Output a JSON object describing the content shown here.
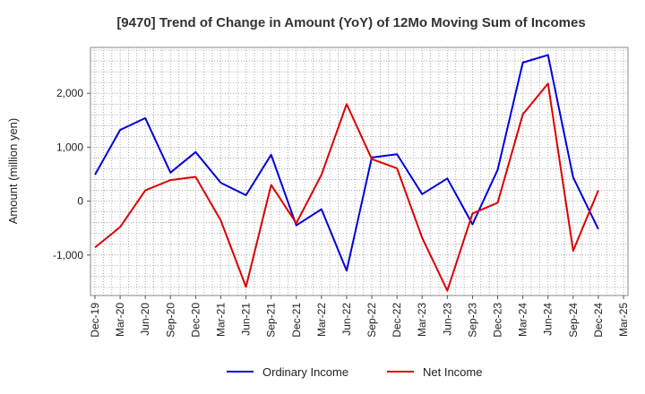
{
  "chart_data": {
    "type": "line",
    "title": "[9470]  Trend of Change in Amount (YoY) of 12Mo Moving Sum of Incomes",
    "xlabel": "",
    "ylabel": "Amount (million yen)",
    "x": [
      "Dec-19",
      "Mar-20",
      "Jun-20",
      "Sep-20",
      "Dec-20",
      "Mar-21",
      "Jun-21",
      "Sep-21",
      "Dec-21",
      "Mar-22",
      "Jun-22",
      "Sep-22",
      "Dec-22",
      "Mar-23",
      "Jun-23",
      "Sep-23",
      "Dec-23",
      "Mar-24",
      "Jun-24",
      "Sep-24",
      "Dec-24",
      "Mar-25"
    ],
    "ylim": [
      -1750,
      2850
    ],
    "yticks": [
      {
        "value": 2000,
        "label": "2,000"
      },
      {
        "value": 1000,
        "label": "1,000"
      },
      {
        "value": 0,
        "label": "0"
      },
      {
        "value": -1000,
        "label": "-1,000"
      }
    ],
    "grid": true,
    "legend_position": "bottom",
    "series": [
      {
        "name": "Ordinary Income",
        "color": "#0000dd",
        "values": [
          490,
          1320,
          1540,
          530,
          910,
          340,
          110,
          860,
          -450,
          -150,
          -1290,
          810,
          870,
          130,
          420,
          -430,
          580,
          2570,
          2710,
          440,
          -520,
          null
        ]
      },
      {
        "name": "Net Income",
        "color": "#dd0000",
        "values": [
          -860,
          -480,
          200,
          390,
          450,
          -360,
          -1590,
          300,
          -410,
          490,
          1800,
          780,
          610,
          -680,
          -1660,
          -230,
          -30,
          1610,
          2180,
          -920,
          200,
          null
        ]
      }
    ]
  }
}
